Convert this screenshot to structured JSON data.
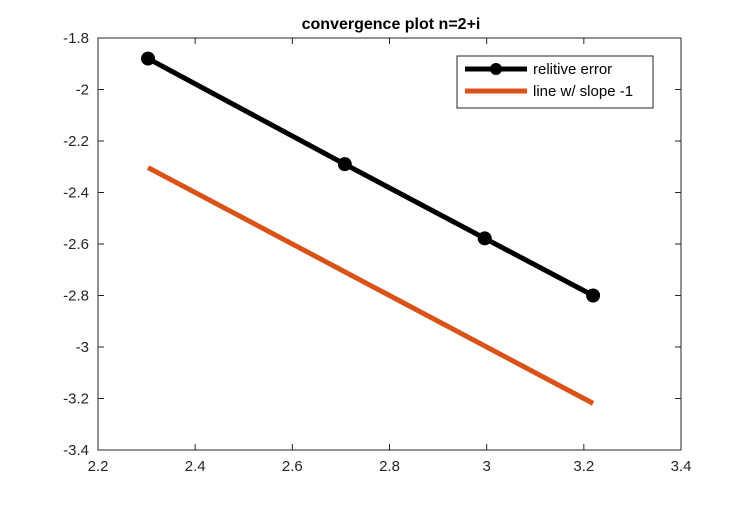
{
  "chart_data": {
    "type": "line",
    "title": "convergence plot n=2+i",
    "xlabel": "",
    "ylabel": "",
    "xlim": [
      2.2,
      3.4
    ],
    "ylim": [
      -3.4,
      -1.8
    ],
    "xticks": [
      "2.2",
      "2.4",
      "2.6",
      "2.8",
      "3",
      "3.2",
      "3.4"
    ],
    "yticks": [
      "-1.8",
      "-2",
      "-2.2",
      "-2.4",
      "-2.6",
      "-2.8",
      "-3",
      "-3.2",
      "-3.4"
    ],
    "grid": false,
    "legend_position": "top-right",
    "series": [
      {
        "name": "relitive error",
        "color": "#000000",
        "marker": "circle",
        "x": [
          2.303,
          2.708,
          2.996,
          3.219
        ],
        "y": [
          -1.88,
          -2.29,
          -2.578,
          -2.8
        ]
      },
      {
        "name": "line w/ slope -1",
        "color": "#d95319",
        "marker": "none",
        "x": [
          2.303,
          3.219
        ],
        "y": [
          -2.303,
          -3.219
        ]
      }
    ]
  }
}
